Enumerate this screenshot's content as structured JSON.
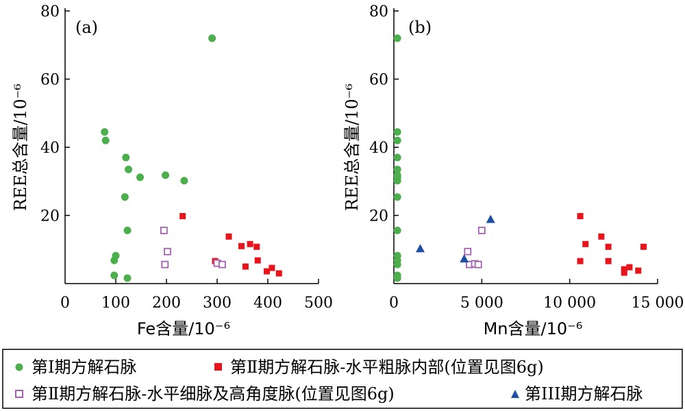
{
  "colors": {
    "group1": "#4cae4c",
    "group2": "#e8141c",
    "group3": "#a35fb0",
    "group4": "#1f4fa3"
  },
  "legend": {
    "group1": "第Ⅰ期方解石脉",
    "group2": "第Ⅱ期方解石脉-水平粗脉内部(位置见图6g)",
    "group3": "第Ⅱ期方解石脉-水平细脉及高角度脉(位置见图6g)",
    "group4": "第III期方解石脉"
  },
  "chart_data": [
    {
      "panel": "(a)",
      "type": "scatter",
      "xlabel": "Fe含量/10⁻⁶",
      "ylabel": "REE总含量/10⁻⁶",
      "xlim": [
        0,
        500
      ],
      "ylim": [
        0,
        80
      ],
      "xticks": [
        "0",
        "100",
        "200",
        "300",
        "400",
        "500"
      ],
      "yticks": [
        "20",
        "40",
        "60",
        "80"
      ],
      "series": [
        {
          "key": "group1",
          "marker": "circle",
          "points": [
            [
              290,
              72
            ],
            [
              78,
              44.5
            ],
            [
              80,
              42
            ],
            [
              120,
              37
            ],
            [
              125,
              33.5
            ],
            [
              148,
              31.2
            ],
            [
              198,
              31.8
            ],
            [
              235,
              30.2
            ],
            [
              118,
              25.4
            ],
            [
              123,
              15.6
            ],
            [
              100,
              8.2
            ],
            [
              97,
              6.8
            ],
            [
              97,
              2.4
            ],
            [
              123,
              1.6
            ]
          ]
        },
        {
          "key": "group2",
          "marker": "square",
          "points": [
            [
              232,
              19.8
            ],
            [
              323,
              13.8
            ],
            [
              348,
              11
            ],
            [
              365,
              11.6
            ],
            [
              378,
              10.8
            ],
            [
              380,
              6.8
            ],
            [
              296,
              6.6
            ],
            [
              356,
              5
            ],
            [
              408,
              4.6
            ],
            [
              398,
              3.6
            ],
            [
              422,
              3
            ]
          ]
        },
        {
          "key": "group3",
          "marker": "open-square",
          "points": [
            [
              195,
              15.6
            ],
            [
              202,
              9.4
            ],
            [
              197,
              5.6
            ],
            [
              300,
              6
            ],
            [
              310,
              5.6
            ]
          ]
        }
      ]
    },
    {
      "panel": "(b)",
      "type": "scatter",
      "xlabel": "Mn含量/10⁻⁶",
      "ylabel": "REE总含量/10⁻⁶",
      "xlim": [
        0,
        15000
      ],
      "ylim": [
        0,
        80
      ],
      "xticks": [
        "0",
        "5 000",
        "10 000",
        "15 000"
      ],
      "yticks": [
        "20",
        "40",
        "60",
        "80"
      ],
      "series": [
        {
          "key": "group1",
          "marker": "circle",
          "points": [
            [
              200,
              72
            ],
            [
              200,
              44.5
            ],
            [
              200,
              42
            ],
            [
              200,
              37
            ],
            [
              200,
              33.5
            ],
            [
              200,
              31.8
            ],
            [
              200,
              31.2
            ],
            [
              200,
              30.2
            ],
            [
              200,
              25.4
            ],
            [
              200,
              15.6
            ],
            [
              200,
              8.2
            ],
            [
              200,
              6.8
            ],
            [
              200,
              5.6
            ],
            [
              200,
              2.4
            ],
            [
              200,
              1.6
            ]
          ]
        },
        {
          "key": "group2",
          "marker": "square",
          "points": [
            [
              10600,
              19.8
            ],
            [
              10600,
              6.6
            ],
            [
              10900,
              11.6
            ],
            [
              11800,
              13.8
            ],
            [
              12200,
              10.8
            ],
            [
              12200,
              6.6
            ],
            [
              13100,
              4.2
            ],
            [
              13100,
              3.2
            ],
            [
              13400,
              4.8
            ],
            [
              13900,
              3.8
            ],
            [
              14200,
              10.8
            ]
          ]
        },
        {
          "key": "group3",
          "marker": "open-square",
          "points": [
            [
              4200,
              9.4
            ],
            [
              4300,
              5.6
            ],
            [
              4600,
              5.8
            ],
            [
              4800,
              5.6
            ],
            [
              5000,
              15.6
            ]
          ]
        },
        {
          "key": "group4",
          "marker": "triangle",
          "points": [
            [
              1500,
              10.2
            ],
            [
              4000,
              7.2
            ],
            [
              5500,
              18.8
            ]
          ]
        }
      ]
    }
  ]
}
